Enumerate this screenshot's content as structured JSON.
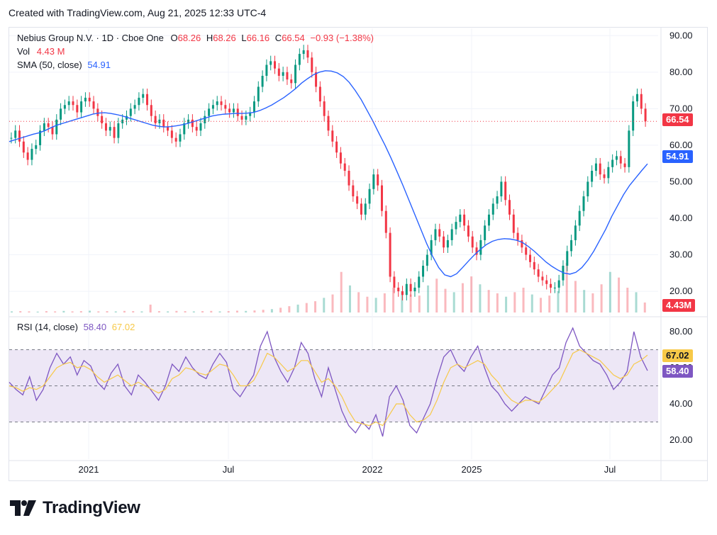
{
  "header": {
    "created": "Created with TradingView.com, Aug 21, 2025 12:33 UTC-4"
  },
  "legend": {
    "symbol": "Nebius Group N.V. · 1D · Cboe One",
    "open_label": "O",
    "open": "68.26",
    "high_label": "H",
    "high": "68.26",
    "low_label": "L",
    "low": "66.16",
    "close_label": "C",
    "close": "66.54",
    "change": "−0.93 (−1.38%)",
    "vol_label": "Vol",
    "vol": "4.43 M",
    "sma_label": "SMA (50, close)",
    "sma": "54.91",
    "rsi_label": "RSI (14, close)",
    "rsi": "58.40",
    "rsi_ma": "67.02"
  },
  "price_tags": {
    "last": "66.54",
    "sma": "54.91",
    "vol": "4.43M",
    "rsi": "58.40",
    "rsi_ma": "67.02"
  },
  "footer": {
    "brand": "TradingView"
  },
  "colors": {
    "up": "#089981",
    "down": "#f23645",
    "sma": "#2962ff",
    "rsi": "#7e57c2",
    "rsi_ma": "#f7c948",
    "rsi_band": "#ede7f6"
  },
  "chart_data": [
    {
      "type": "candlestick",
      "title": "Nebius Group N.V. · 1D · Cboe One",
      "x_ticks": [
        "2021",
        "Jul",
        "2022",
        "2025",
        "Jul"
      ],
      "y_ticks": [
        "90.00",
        "80.00",
        "70.00",
        "60.00",
        "50.00",
        "40.00",
        "30.00",
        "20.00"
      ],
      "ylim": [
        14,
        92
      ],
      "grid": true,
      "last_close": 66.54,
      "series_close": [
        62,
        64,
        61,
        58,
        56,
        59,
        60,
        64,
        66,
        65,
        63,
        67,
        70,
        71,
        72,
        71,
        69,
        72,
        73,
        72,
        70,
        68,
        66,
        64,
        65,
        62,
        66,
        67,
        68,
        70,
        71,
        73,
        74,
        71,
        68,
        66,
        67,
        65,
        64,
        62,
        61,
        63,
        66,
        67,
        65,
        64,
        66,
        68,
        70,
        71,
        72,
        71,
        70,
        69,
        70,
        68,
        67,
        68,
        69,
        72,
        76,
        79,
        82,
        83,
        81,
        79,
        80,
        78,
        77,
        82,
        85,
        86,
        84,
        80,
        76,
        72,
        68,
        64,
        61,
        58,
        55,
        53,
        49,
        46,
        44,
        41,
        44,
        48,
        52,
        49,
        42,
        36,
        24,
        21,
        20,
        19,
        22,
        20,
        21,
        24,
        27,
        30,
        34,
        37,
        35,
        32,
        34,
        37,
        39,
        41,
        38,
        35,
        32,
        30,
        34,
        38,
        41,
        44,
        46,
        50,
        45,
        41,
        36,
        34,
        32,
        30,
        28,
        26,
        24,
        23,
        22,
        21,
        21,
        23,
        27,
        31,
        34,
        38,
        42,
        46,
        50,
        53,
        55,
        52,
        51,
        54,
        56,
        57,
        55,
        54,
        64,
        72,
        74,
        70,
        66.54
      ],
      "sma_50": [
        61,
        61.5,
        62,
        62.5,
        63,
        63.4,
        64,
        64.8,
        65.5,
        66,
        66.5,
        67,
        67.5,
        68,
        68.5,
        68.8,
        68.9,
        68.7,
        68.4,
        68,
        67.5,
        67,
        66.5,
        66,
        65.5,
        65.2,
        65,
        65.1,
        65.3,
        65.6,
        66,
        66.5,
        67,
        67.5,
        68,
        68.3,
        68.5,
        68.6,
        68.7,
        68.7,
        68.8,
        69,
        69.5,
        70.2,
        71,
        72,
        73,
        74.2,
        75.5,
        77,
        78.2,
        79.3,
        80,
        80.4,
        80.3,
        79.8,
        78.8,
        77.2,
        75,
        72.5,
        69.5,
        66.5,
        63.2,
        60,
        56.5,
        52.8,
        49,
        45,
        41,
        37,
        33,
        29.5,
        26.5,
        24.5,
        24,
        24.8,
        26.5,
        28.3,
        30,
        31.5,
        32.8,
        33.7,
        34.2,
        34.4,
        34.3,
        34,
        33.4,
        32.3,
        31,
        29.5,
        28,
        26.8,
        25.8,
        25,
        24.7,
        25.2,
        26.5,
        28.5,
        31,
        34,
        37,
        40.5,
        43.5,
        46.5,
        49,
        51,
        53,
        54.91
      ]
    },
    {
      "type": "bar",
      "title": "Vol",
      "last": "4.43 M",
      "values": [
        0.5,
        0.6,
        0.5,
        0.4,
        0.6,
        0.5,
        0.7,
        0.5,
        0.6,
        0.8,
        0.5,
        0.6,
        0.5,
        0.7,
        0.6,
        0.5,
        3.5,
        0.6,
        0.5,
        0.7,
        0.6,
        0.5,
        0.6,
        0.7,
        0.5,
        0.6,
        0.8,
        0.7,
        0.9,
        1.2,
        1.5,
        2.1,
        2.8,
        3.5,
        4.2,
        5.0,
        6.5,
        8.0,
        18.0,
        12.0,
        9.0,
        7.0,
        6.5,
        8.5,
        11.0,
        9.5,
        8.0,
        7.5,
        12.0,
        15.0,
        10.5,
        9.0,
        13.0,
        16.0,
        12.5,
        10.0,
        8.5,
        7.0,
        9.0,
        11.0,
        8.0,
        6.5,
        7.5,
        9.5,
        22.0,
        14.0,
        10.0,
        8.5,
        12.5,
        18.0,
        15.5,
        11.0,
        9.0,
        4.43
      ]
    },
    {
      "type": "line",
      "title": "RSI (14, close)",
      "y_ticks": [
        "80.00",
        "60.00",
        "40.00",
        "20.00"
      ],
      "ylim": [
        15,
        85
      ],
      "bands": [
        30,
        50,
        70
      ],
      "series": [
        {
          "name": "RSI (14, close)",
          "values": [
            52,
            48,
            45,
            55,
            42,
            48,
            60,
            68,
            62,
            66,
            56,
            64,
            61,
            52,
            48,
            57,
            62,
            50,
            45,
            56,
            52,
            47,
            42,
            50,
            62,
            58,
            66,
            60,
            56,
            54,
            62,
            68,
            63,
            48,
            44,
            50,
            56,
            72,
            80,
            66,
            58,
            52,
            60,
            74,
            68,
            54,
            44,
            60,
            48,
            36,
            28,
            24,
            30,
            26,
            34,
            22,
            44,
            50,
            42,
            28,
            24,
            32,
            40,
            54,
            66,
            70,
            62,
            58,
            66,
            72,
            60,
            50,
            46,
            40,
            36,
            40,
            44,
            42,
            40,
            48,
            56,
            60,
            74,
            82,
            72,
            68,
            64,
            62,
            56,
            48,
            52,
            58,
            80,
            66,
            58.4
          ]
        },
        {
          "name": "RSI MA",
          "values": [
            50,
            49,
            47,
            49,
            48,
            50,
            55,
            60,
            62,
            63,
            60,
            61,
            59,
            55,
            52,
            54,
            56,
            53,
            50,
            52,
            50,
            48,
            46,
            48,
            54,
            56,
            60,
            59,
            57,
            56,
            59,
            62,
            61,
            56,
            50,
            50,
            53,
            60,
            68,
            66,
            62,
            58,
            60,
            64,
            64,
            58,
            52,
            54,
            50,
            44,
            36,
            30,
            29,
            28,
            30,
            28,
            34,
            40,
            40,
            34,
            30,
            31,
            34,
            42,
            52,
            60,
            62,
            60,
            62,
            64,
            62,
            56,
            52,
            46,
            42,
            40,
            42,
            42,
            41,
            44,
            48,
            52,
            60,
            68,
            70,
            68,
            66,
            64,
            60,
            56,
            54,
            56,
            62,
            64,
            67.02
          ]
        }
      ]
    }
  ]
}
